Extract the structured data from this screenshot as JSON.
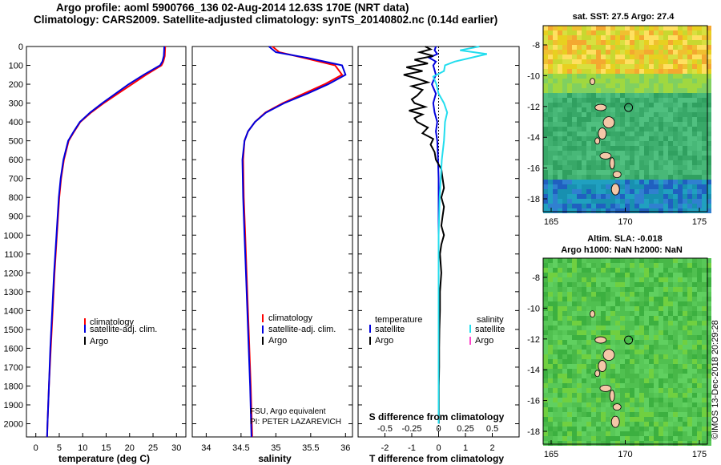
{
  "header": {
    "line1": "Argo profile: aoml 5900766_136 02-Aug-2014 12.63S 170E (NRT data)",
    "line2": "Climatology: CARS2009. Satellite-adjusted climatology: synTS_20140802.nc (0.14d earlier)"
  },
  "colors": {
    "climatology": "#ff0000",
    "satellite": "#0000dd",
    "argo": "#000000",
    "sat_salinity": "#22ddee",
    "argo_salinity": "#ff44cc"
  },
  "depth_axis": {
    "ticks": [
      0,
      100,
      200,
      300,
      400,
      500,
      600,
      700,
      800,
      900,
      1000,
      1100,
      1200,
      1300,
      1400,
      1500,
      1600,
      1700,
      1800,
      1900,
      2000
    ],
    "labels": [
      "0",
      "100",
      "200",
      "300",
      "400",
      "500",
      "600",
      "700",
      "800",
      "900",
      "1000",
      "1100",
      "1200",
      "1300",
      "1400",
      "1500",
      "1600",
      "1700",
      "1800",
      "1900",
      "2000"
    ],
    "range": [
      0,
      2070
    ]
  },
  "chart_data": [
    {
      "type": "line",
      "panel": "temperature",
      "xlabel": "temperature (deg C)",
      "xlim": [
        -2,
        32
      ],
      "xticks": [
        0,
        5,
        10,
        15,
        20,
        25,
        30
      ],
      "xtick_labels": [
        "0",
        "5",
        "10",
        "15",
        "20",
        "25",
        "30"
      ],
      "legend": {
        "position": "lower-right",
        "entries": [
          "climatology",
          "satellite-adj. clim.",
          "Argo"
        ]
      },
      "series": [
        {
          "name": "climatology",
          "depth": [
            0,
            50,
            80,
            100,
            150,
            200,
            250,
            300,
            350,
            400,
            450,
            500,
            600,
            700,
            800,
            1000,
            1200,
            1400,
            1600,
            1800,
            2000,
            2070
          ],
          "values": [
            27.6,
            27.5,
            27.2,
            26.8,
            23.5,
            20.5,
            17.5,
            14.5,
            11.8,
            9.5,
            8.2,
            7.0,
            6.0,
            5.4,
            5.0,
            4.5,
            4.0,
            3.6,
            3.2,
            2.8,
            2.5,
            2.4
          ]
        },
        {
          "name": "satellite-adj. clim.",
          "depth": [
            0,
            50,
            80,
            100,
            150,
            200,
            250,
            300,
            350,
            400,
            450,
            500,
            600,
            700,
            800,
            1000,
            1200,
            1400,
            1600,
            1800,
            2000,
            2070
          ],
          "values": [
            27.4,
            27.3,
            27.0,
            26.5,
            23.0,
            19.8,
            17.0,
            14.2,
            11.6,
            9.4,
            8.1,
            6.9,
            5.9,
            5.3,
            4.9,
            4.4,
            3.9,
            3.5,
            3.1,
            2.8,
            2.5,
            2.4
          ]
        }
      ]
    },
    {
      "type": "line",
      "panel": "salinity",
      "xlabel": "salinity",
      "xlim": [
        33.8,
        36.1
      ],
      "xticks": [
        34,
        34.5,
        35,
        35.5,
        36
      ],
      "xtick_labels": [
        "34",
        "34.5",
        "35",
        "35.5",
        "36"
      ],
      "legend": {
        "position": "lower-right",
        "entries": [
          "climatology",
          "satellite-adj. clim.",
          "Argo"
        ]
      },
      "credit": [
        "FSU, Argo equivalent",
        "PI: PETER LAZAREVICH"
      ],
      "series": [
        {
          "name": "climatology",
          "depth": [
            0,
            30,
            60,
            100,
            150,
            200,
            250,
            300,
            350,
            400,
            450,
            500,
            600,
            800,
            1000,
            1200,
            1500,
            1800,
            2070
          ],
          "values": [
            34.95,
            35.05,
            35.4,
            35.85,
            35.95,
            35.7,
            35.4,
            35.1,
            34.85,
            34.7,
            34.6,
            34.55,
            34.53,
            34.54,
            34.56,
            34.58,
            34.61,
            34.64,
            34.66
          ]
        },
        {
          "name": "satellite-adj. clim.",
          "depth": [
            0,
            30,
            60,
            100,
            150,
            200,
            250,
            300,
            350,
            400,
            450,
            500,
            600,
            800,
            1000,
            1200,
            1500,
            1800,
            2070
          ],
          "values": [
            34.9,
            35.0,
            35.45,
            35.95,
            36.0,
            35.75,
            35.45,
            35.12,
            34.86,
            34.7,
            34.6,
            34.55,
            34.52,
            34.53,
            34.55,
            34.57,
            34.6,
            34.63,
            34.65
          ]
        }
      ]
    },
    {
      "type": "line",
      "panel": "difference",
      "xlabel": "T difference from climatology",
      "xlim": [
        -3,
        3
      ],
      "xticks": [
        -2,
        -1,
        0,
        1,
        2
      ],
      "xtick_labels": [
        "-2",
        "-1",
        "0",
        "1",
        "2"
      ],
      "s_title": "S difference from climatology",
      "s_ticks": [
        -0.5,
        -0.25,
        0,
        0.25,
        0.5
      ],
      "s_tick_labels": [
        "-0.5",
        "-0.25",
        "0",
        "0.25",
        "0.5"
      ],
      "legend": {
        "position": "lower",
        "temperature_title": "temperature",
        "salinity_title": "salinity",
        "temperature_entries": [
          "satellite",
          "Argo"
        ],
        "salinity_entries": [
          "satellite",
          "Argo"
        ]
      },
      "series": [
        {
          "name": "temperature satellite",
          "depth": [
            0,
            20,
            40,
            60,
            80,
            100,
            150,
            200,
            250,
            300,
            350,
            400,
            450,
            500,
            600,
            700,
            800,
            1000,
            1500,
            2000
          ],
          "values": [
            -0.1,
            -0.15,
            -0.05,
            -0.35,
            -0.1,
            -0.2,
            -0.1,
            -0.25,
            -0.1,
            -0.2,
            -0.15,
            -0.05,
            -0.1,
            -0.05,
            -0.02,
            0,
            0,
            0,
            0,
            0
          ]
        },
        {
          "name": "temperature Argo",
          "depth": [
            0,
            15,
            30,
            50,
            70,
            90,
            110,
            130,
            150,
            170,
            190,
            210,
            230,
            260,
            280,
            300,
            320,
            340,
            360,
            380,
            400,
            430,
            460,
            490,
            520,
            560,
            600,
            650,
            700,
            750,
            800,
            850,
            900,
            950,
            1000,
            1050,
            1100,
            1200,
            1300,
            1400,
            1500,
            1600,
            1700,
            1800,
            1900,
            2000
          ],
          "values": [
            -0.5,
            -0.3,
            -0.7,
            -0.2,
            -0.9,
            -0.4,
            -1.2,
            -0.6,
            -1.3,
            -0.8,
            -0.4,
            -1.0,
            -0.6,
            -0.8,
            -1.0,
            -0.9,
            -0.5,
            -1.1,
            -0.6,
            -0.9,
            -0.8,
            -0.4,
            -0.6,
            -0.2,
            -0.3,
            -0.15,
            -0.1,
            0.1,
            0.15,
            0.2,
            0.1,
            0.2,
            0.15,
            0.1,
            0.2,
            0.1,
            0.05,
            0.1,
            0.05,
            0.05,
            0.03,
            0.02,
            0.02,
            0.01,
            0.01,
            0.01
          ]
        },
        {
          "name": "salinity satellite",
          "depth": [
            0,
            20,
            40,
            60,
            80,
            100,
            130,
            160,
            200,
            250,
            300,
            350,
            400,
            500,
            600,
            700,
            800,
            1000,
            1200,
            1500,
            1800,
            2000
          ],
          "values": [
            0.38,
            0.2,
            0.45,
            0.3,
            0.15,
            0.06,
            0.05,
            -0.05,
            -0.02,
            0.0,
            0.05,
            0.08,
            0.06,
            0.05,
            0.03,
            0.02,
            0.01,
            0.0,
            0.0,
            0.0,
            0.0,
            0.0
          ]
        }
      ]
    },
    {
      "type": "heatmap",
      "panel": "sst_map",
      "title": "sat. SST: 27.5 Argo: 27.4",
      "xticks": [
        "165",
        "170",
        "175"
      ],
      "yticks": [
        "-8",
        "-10",
        "-12",
        "-14",
        "-16",
        "-18"
      ]
    },
    {
      "type": "heatmap",
      "panel": "sla_map",
      "title_line1": "Altim. SLA: -0.018",
      "title_line2": "Argo h1000: NaN h2000: NaN",
      "xticks": [
        "165",
        "170",
        "175"
      ],
      "yticks": [
        "-8",
        "-10",
        "-12",
        "-14",
        "-16",
        "-18"
      ]
    }
  ],
  "sidebar_stamp": "©IMOS 13-Dec-2018 20:29:28"
}
